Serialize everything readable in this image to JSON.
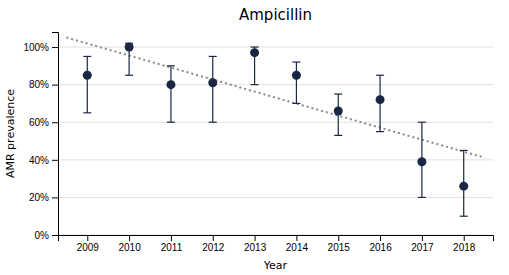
{
  "chart_data": {
    "type": "scatter",
    "title": "Ampicillin",
    "x_label": "Year",
    "y_label": "AMR prevalence",
    "series": [
      {
        "type": "scatter",
        "marker": "circle",
        "color": "#1a2744",
        "x": [
          2009,
          2010,
          2011,
          2012,
          2013,
          2014,
          2015,
          2016,
          2017,
          2018
        ],
        "values": [
          0.85,
          1.0,
          0.8,
          0.81,
          0.97,
          0.85,
          0.66,
          0.72,
          0.39,
          0.26
        ],
        "err_low": [
          0.2,
          0.15,
          0.2,
          0.21,
          0.17,
          0.15,
          0.13,
          0.17,
          0.19,
          0.16
        ],
        "err_high": [
          0.1,
          0.02,
          0.1,
          0.14,
          0.03,
          0.07,
          0.09,
          0.13,
          0.21,
          0.19
        ]
      },
      {
        "type": "line",
        "line_style": "dotted",
        "color": "#888888",
        "x": [
          2008.5,
          2018.5
        ],
        "values": [
          1.0506969697,
          0.4113030303
        ]
      }
    ],
    "xlim": [
      2008.3,
      2018.7
    ],
    "xticks": [
      2009,
      2010,
      2011,
      2012,
      2013,
      2014,
      2015,
      2016,
      2017,
      2018
    ],
    "ylim": [
      0.0,
      1.08
    ],
    "yticks": [
      {
        "value": 0.0,
        "label": "0%"
      },
      {
        "value": 0.2,
        "label": "20%"
      },
      {
        "value": 0.4,
        "label": "40%"
      },
      {
        "value": 0.6,
        "label": "60%"
      },
      {
        "value": 0.8,
        "label": "80%"
      },
      {
        "value": 1.0,
        "label": "100%"
      }
    ],
    "grid": true
  }
}
